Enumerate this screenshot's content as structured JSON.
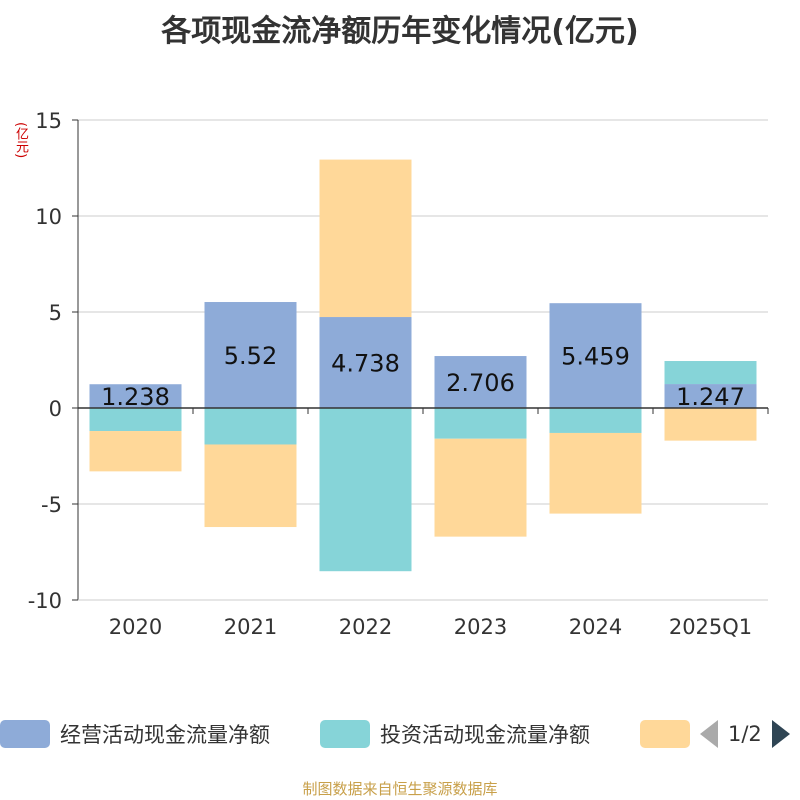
{
  "title": "各项现金流净额历年变化情况(亿元)",
  "unit_label": "(亿元)",
  "source": "制图数据来自恒生聚源数据库",
  "legend": {
    "items": [
      {
        "label": "经营活动现金流量净额",
        "color": "#8eabd8"
      },
      {
        "label": "投资活动现金流量净额",
        "color": "#86d4d8"
      },
      {
        "label": "",
        "color": "#ffd899"
      }
    ],
    "page": "1/2"
  },
  "chart_data": {
    "type": "bar",
    "stacked": true,
    "title": "各项现金流净额历年变化情况(亿元)",
    "ylabel": "(亿元)",
    "ylim": [
      -10,
      15
    ],
    "yticks": [
      -10,
      -5,
      0,
      5,
      10,
      15
    ],
    "grid": true,
    "legend_position": "bottom",
    "categories": [
      "2020",
      "2021",
      "2022",
      "2023",
      "2024",
      "2025Q1"
    ],
    "series": [
      {
        "name": "经营活动现金流量净额",
        "color": "#8eabd8",
        "values": [
          1.238,
          5.52,
          4.738,
          2.706,
          5.459,
          1.247
        ],
        "labels": [
          "1.238",
          "5.52",
          "4.738",
          "2.706",
          "5.459",
          "1.247"
        ]
      },
      {
        "name": "投资活动现金流量净额",
        "color": "#86d4d8",
        "values": [
          -1.2,
          -1.9,
          -8.5,
          -1.6,
          -1.3,
          1.2
        ]
      },
      {
        "color": "#ffd899",
        "values": [
          -2.1,
          -4.3,
          8.2,
          -5.1,
          -4.2,
          -1.7
        ]
      }
    ]
  }
}
